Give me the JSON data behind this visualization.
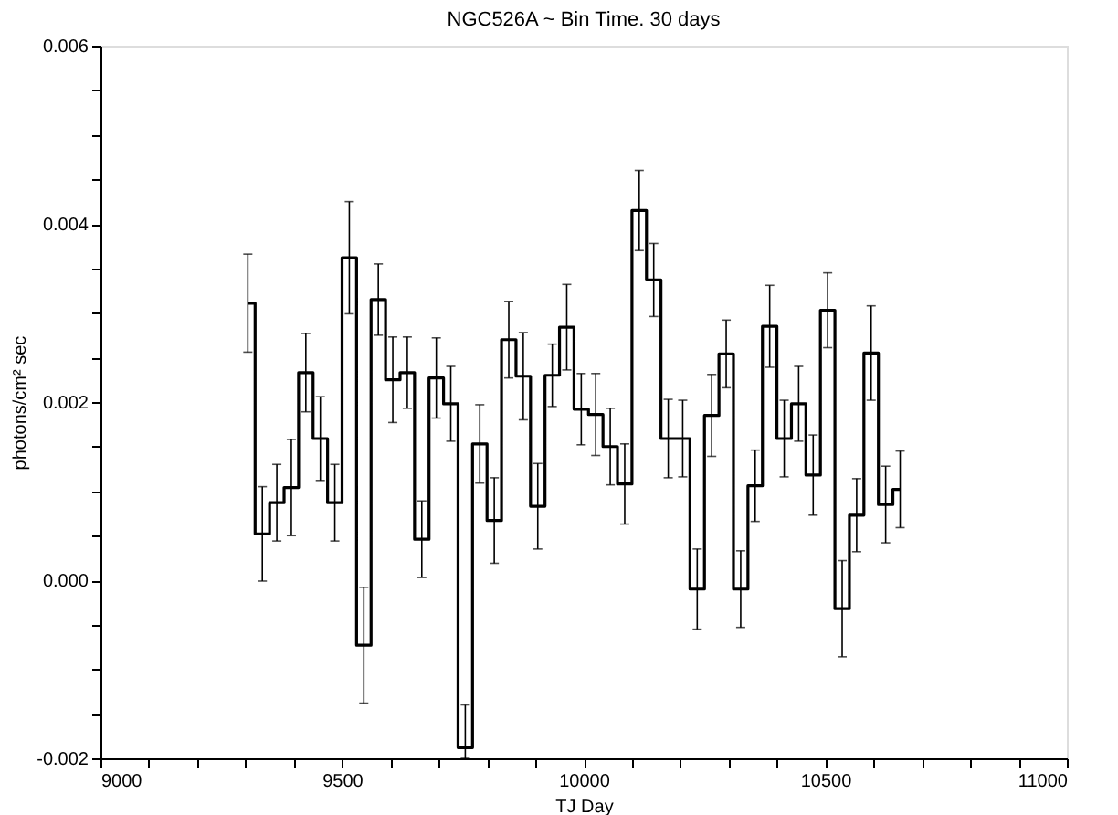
{
  "chart_data": {
    "type": "step",
    "title": "NGC526A ~ Bin Time. 30 days",
    "xlabel": "TJ Day",
    "ylabel": "photons/cm² sec",
    "x": [
      9305,
      9335,
      9365,
      9395,
      9425,
      9455,
      9485,
      9515,
      9545,
      9575,
      9605,
      9635,
      9665,
      9695,
      9725,
      9755,
      9785,
      9815,
      9845,
      9875,
      9905,
      9935,
      9965,
      9995,
      10025,
      10055,
      10085,
      10115,
      10145,
      10175,
      10205,
      10235,
      10265,
      10295,
      10325,
      10355,
      10385,
      10415,
      10445,
      10475,
      10505,
      10535,
      10565,
      10595,
      10625,
      10655
    ],
    "series": [
      {
        "color": "#000000",
        "values": [
          0.00311,
          0.00052,
          0.00087,
          0.00104,
          0.00233,
          0.00159,
          0.00087,
          0.00362,
          -0.00073,
          0.00315,
          0.00225,
          0.00233,
          0.00046,
          0.00227,
          0.00198,
          -0.00188,
          0.00153,
          0.00067,
          0.0027,
          0.00229,
          0.00083,
          0.0023,
          0.00284,
          0.00192,
          0.00186,
          0.0015,
          0.00108,
          0.00415,
          0.00337,
          0.00159,
          0.00159,
          -0.0001,
          0.00185,
          0.00254,
          -0.0001,
          0.00106,
          0.00285,
          0.00159,
          0.00198,
          0.00118,
          0.00303,
          -0.00032,
          0.00073,
          0.00255,
          0.00085,
          0.00102
        ],
        "errors": [
          0.00055,
          0.00053,
          0.00043,
          0.00054,
          0.00044,
          0.00047,
          0.00043,
          0.00063,
          0.00065,
          0.0004,
          0.00048,
          0.0004,
          0.00043,
          0.00045,
          0.00042,
          [
            -0.002,
            -0.0014
          ],
          0.00044,
          0.00048,
          0.00043,
          0.00049,
          0.00048,
          0.00035,
          0.00048,
          0.0004,
          0.00046,
          0.00043,
          0.00045,
          0.00045,
          0.00041,
          0.00044,
          0.00043,
          0.00045,
          0.00046,
          0.00038,
          0.00043,
          0.0004,
          0.00046,
          0.00043,
          0.00042,
          0.00045,
          0.00042,
          0.00054,
          0.00041,
          0.00053,
          0.00043,
          0.00043
        ]
      }
    ],
    "xlim": [
      9000,
      11000
    ],
    "xticks": [
      9000,
      {
        "value": 9100,
        "label": null
      },
      {
        "value": 9200,
        "label": null
      },
      {
        "value": 9300,
        "label": null
      },
      {
        "value": 9400,
        "label": null
      },
      9500,
      {
        "value": 9600,
        "label": null
      },
      {
        "value": 9700,
        "label": null
      },
      {
        "value": 9800,
        "label": null
      },
      {
        "value": 9900,
        "label": null
      },
      10000,
      {
        "value": 10100,
        "label": null
      },
      {
        "value": 10200,
        "label": null
      },
      {
        "value": 10300,
        "label": null
      },
      {
        "value": 10400,
        "label": null
      },
      10500,
      {
        "value": 10600,
        "label": null
      },
      {
        "value": 10700,
        "label": null
      },
      {
        "value": 10800,
        "label": null
      },
      {
        "value": 10900,
        "label": null
      },
      11000
    ],
    "ylim": [
      -0.002,
      0.006
    ],
    "yticks": [
      {
        "value": -0.002,
        "label": "-0.002"
      },
      {
        "value": -0.0015,
        "label": null
      },
      {
        "value": -0.001,
        "label": null
      },
      {
        "value": -0.0005,
        "label": null
      },
      {
        "value": 0,
        "label": "0.000"
      },
      {
        "value": 0.0005,
        "label": null
      },
      {
        "value": 0.001,
        "label": null
      },
      {
        "value": 0.0015,
        "label": null
      },
      {
        "value": 0.002,
        "label": "0.002"
      },
      {
        "value": 0.0025,
        "label": null
      },
      {
        "value": 0.003,
        "label": null
      },
      {
        "value": 0.0035,
        "label": null
      },
      {
        "value": 0.004,
        "label": "0.004"
      },
      {
        "value": 0.0045,
        "label": null
      },
      {
        "value": 0.005,
        "label": null
      },
      {
        "value": 0.0055,
        "label": null
      },
      {
        "value": 0.006,
        "label": "0.006"
      }
    ],
    "grid": false,
    "legend": false,
    "marker": "none",
    "line_style": "solid"
  }
}
